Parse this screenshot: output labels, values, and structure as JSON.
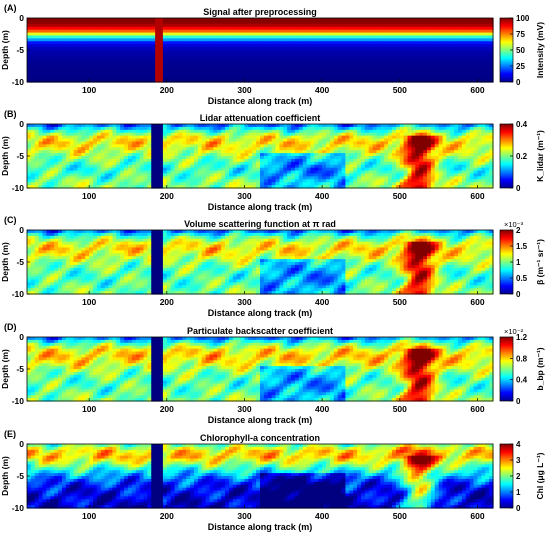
{
  "chart_data": [
    {
      "type": "heatmap",
      "panel_label": "(A)",
      "title": "Signal after preprocessing",
      "xlabel": "Distance along track (m)",
      "ylabel": "Depth (m)",
      "xlim": [
        20,
        620
      ],
      "ylim": [
        -10,
        0
      ],
      "xticks": [
        "100",
        "200",
        "300",
        "400",
        "500",
        "600"
      ],
      "yticks": [
        "0",
        "-5",
        "-10"
      ],
      "colorbar": {
        "label": "Intensity  (mV)",
        "range": [
          0,
          100
        ],
        "ticks": [
          "100",
          "75",
          "50",
          "25",
          "0"
        ],
        "scale_note": ""
      },
      "depth_profile": [
        100,
        98,
        80,
        40,
        10,
        5,
        3,
        2,
        1,
        1,
        0
      ],
      "gap": {
        "x": [
          185,
          195
        ],
        "value": 95
      }
    },
    {
      "type": "heatmap",
      "panel_label": "(B)",
      "title": "Lidar attenuation coefficient",
      "xlabel": "Distance along track (m)",
      "ylabel": "Depth (m)",
      "xlim": [
        20,
        620
      ],
      "ylim": [
        -10,
        0
      ],
      "xticks": [
        "100",
        "200",
        "300",
        "400",
        "500",
        "600"
      ],
      "yticks": [
        "0",
        "-5",
        "-10"
      ],
      "colorbar": {
        "label": "K_lidar (m⁻¹)",
        "range": [
          0,
          0.4
        ],
        "ticks": [
          "0.4",
          "0.2",
          "0"
        ],
        "scale_note": ""
      },
      "depth_profile": [
        0.08,
        0.17,
        0.24,
        0.26,
        0.24,
        0.21,
        0.19,
        0.17,
        0.18,
        0.2,
        0.21
      ],
      "gap": {
        "x": [
          180,
          195
        ],
        "value": 0.0
      }
    },
    {
      "type": "heatmap",
      "panel_label": "(C)",
      "title": "Volume scattering function at π rad",
      "xlabel": "Distance along track (m)",
      "ylabel": "Depth (m)",
      "xlim": [
        20,
        620
      ],
      "ylim": [
        -10,
        0
      ],
      "xticks": [
        "100",
        "200",
        "300",
        "400",
        "500",
        "600"
      ],
      "yticks": [
        "0",
        "-5",
        "-10"
      ],
      "colorbar": {
        "label": "β (m⁻¹ sr⁻¹)",
        "range": [
          0,
          2
        ],
        "ticks": [
          "2",
          "1.5",
          "1",
          "0.5",
          "0"
        ],
        "scale_note": "×10⁻³"
      },
      "depth_profile": [
        0.4,
        0.9,
        1.2,
        1.3,
        1.2,
        1.05,
        0.95,
        0.9,
        0.9,
        0.95,
        1.0
      ],
      "gap": {
        "x": [
          180,
          195
        ],
        "value": 0.0
      }
    },
    {
      "type": "heatmap",
      "panel_label": "(D)",
      "title": "Particulate backscatter coefficient",
      "xlabel": "Distance along track (m)",
      "ylabel": "Depth (m)",
      "xlim": [
        20,
        620
      ],
      "ylim": [
        -10,
        0
      ],
      "xticks": [
        "100",
        "200",
        "300",
        "400",
        "500",
        "600"
      ],
      "yticks": [
        "0",
        "-5",
        "-10"
      ],
      "colorbar": {
        "label": "b_bp (m⁻¹)",
        "range": [
          0,
          1.2
        ],
        "ticks": [
          "1.2",
          "0.8",
          "0.4",
          "0"
        ],
        "scale_note": "×10⁻²"
      },
      "depth_profile": [
        0.25,
        0.55,
        0.75,
        0.8,
        0.75,
        0.65,
        0.58,
        0.55,
        0.55,
        0.58,
        0.62
      ],
      "gap": {
        "x": [
          180,
          195
        ],
        "value": 0.0
      }
    },
    {
      "type": "heatmap",
      "panel_label": "(E)",
      "title": "Chlorophyll-a concentration",
      "xlabel": "Distance along track (m)",
      "ylabel": "Depth (m)",
      "xlim": [
        20,
        620
      ],
      "ylim": [
        -10,
        0
      ],
      "xticks": [
        "100",
        "200",
        "300",
        "400",
        "500",
        "600"
      ],
      "yticks": [
        "0",
        "-5",
        "-10"
      ],
      "colorbar": {
        "label": "Chl (μg L⁻¹)",
        "range": [
          0,
          4
        ],
        "ticks": [
          "4",
          "3",
          "2",
          "1",
          "0"
        ],
        "scale_note": ""
      },
      "depth_profile": [
        1.8,
        2.6,
        2.7,
        2.2,
        1.6,
        1.1,
        0.7,
        0.5,
        0.4,
        0.35,
        0.3
      ],
      "gap": {
        "x": [
          180,
          195
        ],
        "value": 0.0
      }
    }
  ]
}
